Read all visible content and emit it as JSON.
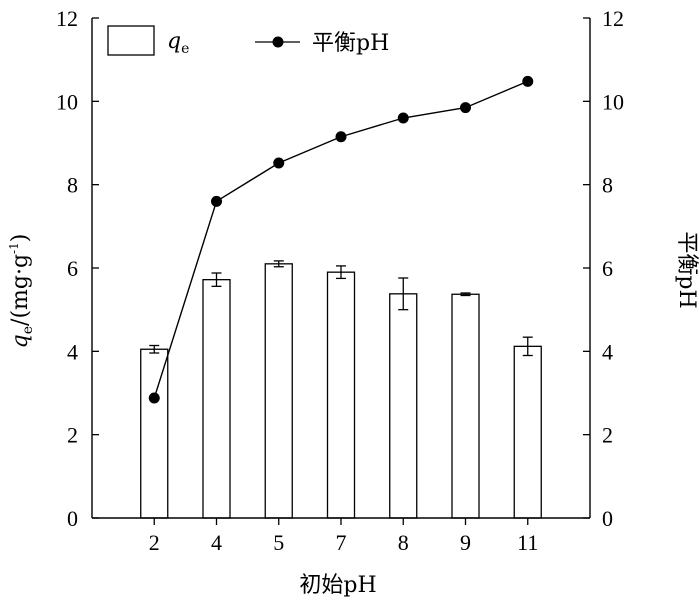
{
  "chart_data": {
    "type": "bar",
    "xlabel": "初始pH",
    "ylabel_left": {
      "symbol": "q",
      "sub": "e",
      "unit": "/(mg·g",
      "sup": "-1",
      "close": ")"
    },
    "ylabel_right": "平衡pH",
    "categories": [
      "2",
      "4",
      "5",
      "7",
      "8",
      "9",
      "11"
    ],
    "ylim": [
      0,
      12
    ],
    "yticks": [
      "0",
      "2",
      "4",
      "6",
      "8",
      "10",
      "12"
    ],
    "series": [
      {
        "name": "q",
        "name_sub": "e",
        "kind": "bar",
        "axis": "left",
        "values": [
          4.05,
          5.72,
          6.1,
          5.9,
          5.38,
          5.37,
          4.12
        ],
        "errors": [
          0.09,
          0.16,
          0.07,
          0.15,
          0.38,
          0.03,
          0.22
        ]
      },
      {
        "name": "平衡pH",
        "kind": "line",
        "axis": "right",
        "values": [
          2.88,
          7.6,
          8.52,
          9.15,
          9.6,
          9.85,
          10.48
        ]
      }
    ],
    "legend_position": "top-left",
    "grid": false
  }
}
